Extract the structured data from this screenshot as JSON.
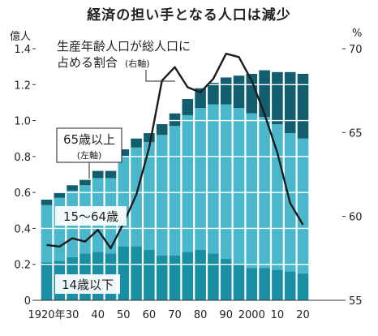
{
  "title": "経済の担い手となる人口は減少",
  "left_unit": "億人",
  "right_unit": "%",
  "colors": {
    "under15": "#1a8fa3",
    "working": "#4bb7cb",
    "over65": "#135e6e",
    "ratio_line": "#1c1c1c",
    "grid": "#ffffff"
  },
  "annotations": {
    "ratio_label_line1": "生産年齢人口が総人口に",
    "ratio_label_line2": "占める割合",
    "ratio_label_axis": "(右軸)",
    "over65_label": "65歳以上",
    "over65_axis": "(左軸)",
    "working_label": "15〜64歳",
    "under15_label": "14歳以下"
  },
  "chart_data": {
    "type": "bar",
    "stacked": true,
    "title": "経済の担い手となる人口は減少",
    "x_tick_labels": [
      "1920年",
      "30",
      "40",
      "50",
      "60",
      "70",
      "80",
      "90",
      "2000",
      "10",
      "20"
    ],
    "categories": [
      1920,
      1925,
      1930,
      1935,
      1940,
      1945,
      1950,
      1955,
      1960,
      1965,
      1970,
      1975,
      1980,
      1985,
      1990,
      1995,
      2000,
      2005,
      2010,
      2015,
      2020
    ],
    "series": [
      {
        "name": "14歳以下",
        "axis": "left",
        "values": [
          0.21,
          0.22,
          0.24,
          0.26,
          0.27,
          0.26,
          0.3,
          0.3,
          0.28,
          0.25,
          0.25,
          0.27,
          0.28,
          0.26,
          0.23,
          0.2,
          0.18,
          0.18,
          0.17,
          0.16,
          0.15
        ]
      },
      {
        "name": "15〜64歳",
        "axis": "left",
        "values": [
          0.32,
          0.35,
          0.37,
          0.38,
          0.41,
          0.42,
          0.5,
          0.55,
          0.6,
          0.67,
          0.72,
          0.76,
          0.79,
          0.83,
          0.86,
          0.87,
          0.86,
          0.84,
          0.81,
          0.77,
          0.75
        ]
      },
      {
        "name": "65歳以上",
        "axis": "left",
        "values": [
          0.03,
          0.03,
          0.03,
          0.03,
          0.04,
          0.04,
          0.04,
          0.05,
          0.05,
          0.06,
          0.07,
          0.09,
          0.11,
          0.12,
          0.15,
          0.18,
          0.22,
          0.26,
          0.29,
          0.34,
          0.36
        ]
      },
      {
        "name": "生産年齢人口が総人口に占める割合",
        "axis": "right",
        "type": "line",
        "values": [
          58.3,
          58.2,
          58.7,
          58.5,
          59.2,
          58.1,
          59.6,
          61.3,
          64.1,
          68.1,
          68.9,
          67.7,
          67.4,
          68.2,
          69.7,
          69.5,
          68.1,
          66.1,
          63.8,
          60.8,
          59.5
        ]
      }
    ],
    "left_axis": {
      "label": "億人",
      "range": [
        0,
        1.4
      ],
      "ticks": [
        "0",
        "0.2",
        "0.4",
        "0.6",
        "0.8",
        "1.0",
        "1.2",
        "1.4"
      ],
      "tick_values": [
        0,
        0.2,
        0.4,
        0.6,
        0.8,
        1.0,
        1.2,
        1.4
      ]
    },
    "right_axis": {
      "label": "%",
      "range": [
        55,
        70
      ],
      "ticks": [
        "55",
        "60",
        "65",
        "70"
      ],
      "tick_values": [
        55,
        60,
        65,
        70
      ]
    },
    "grid": true
  }
}
